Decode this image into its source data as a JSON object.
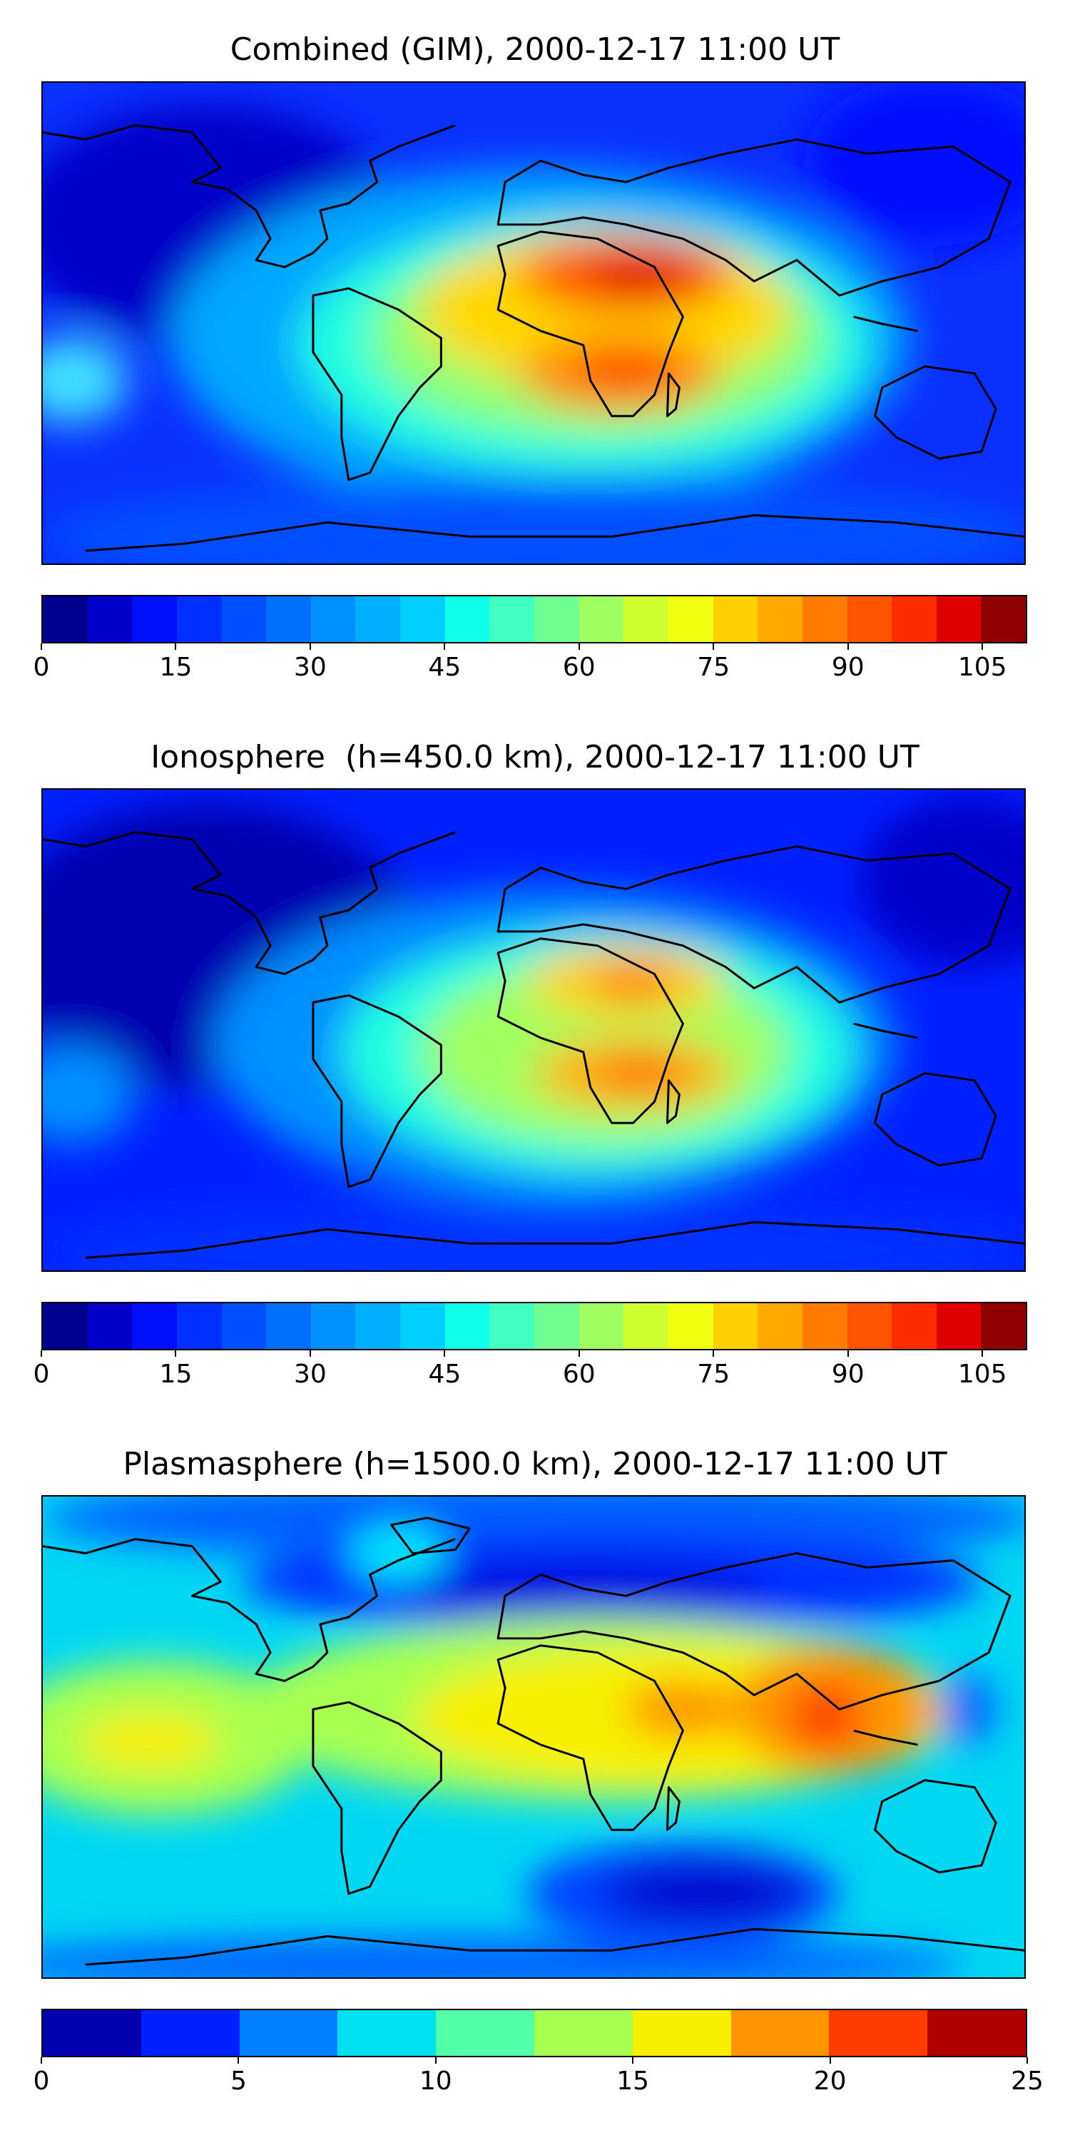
{
  "panels": [
    {
      "title": "Combined (GIM), 2000-12-17 11:00 UT",
      "colorbar": {
        "min": 0,
        "max": 110,
        "step": 5,
        "ticks": [
          "0",
          "15",
          "30",
          "45",
          "60",
          "75",
          "90",
          "105"
        ],
        "tick_values": [
          0,
          15,
          30,
          45,
          60,
          75,
          90,
          105
        ],
        "colors": [
          "#00008f",
          "#0000c8",
          "#0010ff",
          "#0030ff",
          "#0050ff",
          "#0070ff",
          "#0090ff",
          "#00b0ff",
          "#00d0ff",
          "#10ffe8",
          "#40ffc0",
          "#70ff90",
          "#a0ff60",
          "#d0ff30",
          "#f0ff10",
          "#ffd000",
          "#ffa800",
          "#ff7c00",
          "#ff5400",
          "#ff2c00",
          "#e00000",
          "#8f0000"
        ]
      }
    },
    {
      "title": "Ionosphere  (h=450.0 km), 2000-12-17 11:00 UT",
      "colorbar": {
        "min": 0,
        "max": 110,
        "step": 5,
        "ticks": [
          "0",
          "15",
          "30",
          "45",
          "60",
          "75",
          "90",
          "105"
        ],
        "tick_values": [
          0,
          15,
          30,
          45,
          60,
          75,
          90,
          105
        ],
        "colors": [
          "#00008f",
          "#0000c8",
          "#0010ff",
          "#0030ff",
          "#0050ff",
          "#0070ff",
          "#0090ff",
          "#00b0ff",
          "#00d0ff",
          "#10ffe8",
          "#40ffc0",
          "#70ff90",
          "#a0ff60",
          "#d0ff30",
          "#f0ff10",
          "#ffd000",
          "#ffa800",
          "#ff7c00",
          "#ff5400",
          "#ff2c00",
          "#e00000",
          "#8f0000"
        ]
      }
    },
    {
      "title": "Plasmasphere (h=1500.0 km), 2000-12-17 11:00 UT",
      "colorbar": {
        "min": 0,
        "max": 25,
        "step": 2.5,
        "ticks": [
          "0",
          "5",
          "10",
          "15",
          "20",
          "25"
        ],
        "tick_values": [
          0,
          5,
          10,
          15,
          20,
          25
        ],
        "colors": [
          "#0000b0",
          "#0020ff",
          "#0080ff",
          "#00e0f0",
          "#50ffa8",
          "#a8ff50",
          "#f8f000",
          "#ff9400",
          "#ff3c00",
          "#b00000"
        ]
      }
    }
  ],
  "chart_data": [
    {
      "type": "heatmap",
      "title": "Combined (GIM), 2000-12-17 11:00 UT",
      "colorbar_range": [
        0,
        110
      ],
      "colorbar_ticks": [
        0,
        15,
        30,
        45,
        60,
        75,
        90,
        105
      ],
      "peak_regions": [
        "Arabian Peninsula / NE Africa (~100)",
        "Southern Africa / Madagascar (~85)"
      ]
    },
    {
      "type": "heatmap",
      "title": "Ionosphere  (h=450.0 km), 2000-12-17 11:00 UT",
      "colorbar_range": [
        0,
        110
      ],
      "colorbar_ticks": [
        0,
        15,
        30,
        45,
        60,
        75,
        90,
        105
      ],
      "peak_regions": [
        "Red Sea region (~85)",
        "Southern Africa (~85)"
      ]
    },
    {
      "type": "heatmap",
      "title": "Plasmasphere (h=1500.0 km), 2000-12-17 11:00 UT",
      "colorbar_range": [
        0,
        25
      ],
      "colorbar_ticks": [
        0,
        5,
        10,
        15,
        20,
        25
      ],
      "peak_regions": [
        "Southeast Asia (~21)",
        "Arabian Sea (~19)"
      ]
    }
  ]
}
